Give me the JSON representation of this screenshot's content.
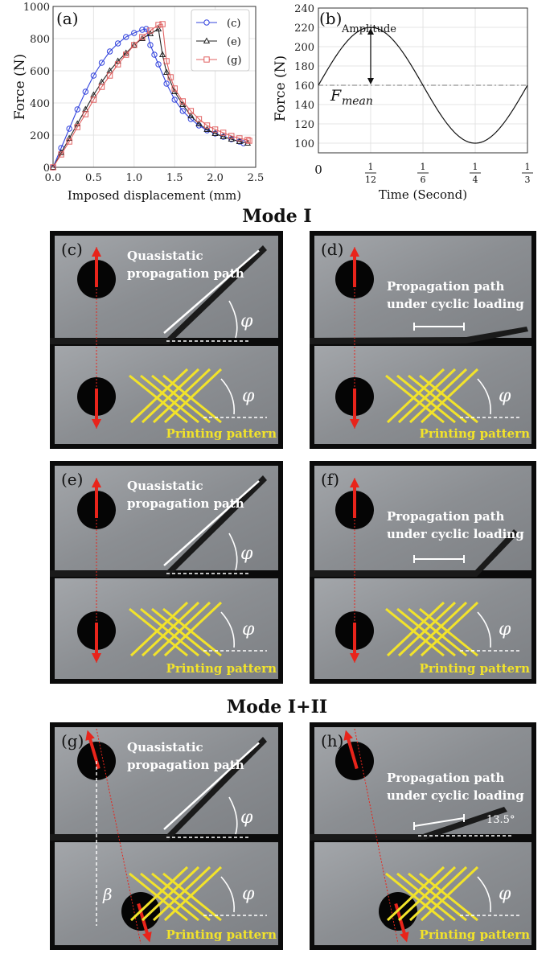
{
  "chart_data": [
    {
      "type": "line",
      "panel_label": "(a)",
      "xlabel": "Imposed displacement (mm)",
      "ylabel": "Force (N)",
      "xlim": [
        0,
        2.5
      ],
      "ylim": [
        0,
        1000
      ],
      "xticks": [
        "0.0",
        "0.5",
        "1.0",
        "1.5",
        "2.0",
        "2.5"
      ],
      "yticks": [
        "0",
        "200",
        "400",
        "600",
        "800",
        "1000"
      ],
      "legend_position": "top-right",
      "grid": true,
      "series": [
        {
          "name": "(c)",
          "color": "#3344dd",
          "marker": "circle",
          "x": [
            0,
            0.1,
            0.2,
            0.3,
            0.4,
            0.5,
            0.6,
            0.7,
            0.8,
            0.9,
            1.0,
            1.1,
            1.15,
            1.2,
            1.25,
            1.3,
            1.4,
            1.5,
            1.6,
            1.7,
            1.8,
            1.9,
            2.0,
            2.1,
            2.2,
            2.3,
            2.35
          ],
          "y": [
            0,
            120,
            240,
            360,
            470,
            570,
            650,
            720,
            770,
            810,
            835,
            855,
            860,
            760,
            700,
            640,
            520,
            420,
            350,
            300,
            260,
            230,
            210,
            190,
            175,
            160,
            150
          ]
        },
        {
          "name": "(e)",
          "color": "#222222",
          "marker": "triangle",
          "x": [
            0,
            0.1,
            0.2,
            0.3,
            0.4,
            0.5,
            0.6,
            0.7,
            0.8,
            0.9,
            1.0,
            1.1,
            1.2,
            1.3,
            1.35,
            1.4,
            1.5,
            1.6,
            1.7,
            1.8,
            1.9,
            2.0,
            2.1,
            2.2,
            2.3,
            2.4
          ],
          "y": [
            0,
            90,
            180,
            270,
            360,
            450,
            530,
            600,
            660,
            710,
            760,
            800,
            830,
            860,
            700,
            590,
            470,
            390,
            320,
            270,
            235,
            210,
            190,
            175,
            160,
            150
          ]
        },
        {
          "name": "(g)",
          "color": "#e06060",
          "marker": "square",
          "x": [
            0,
            0.1,
            0.2,
            0.3,
            0.4,
            0.5,
            0.6,
            0.7,
            0.8,
            0.9,
            1.0,
            1.1,
            1.2,
            1.3,
            1.35,
            1.4,
            1.45,
            1.5,
            1.6,
            1.7,
            1.8,
            1.9,
            2.0,
            2.1,
            2.2,
            2.3,
            2.4,
            2.42
          ],
          "y": [
            0,
            80,
            160,
            250,
            330,
            420,
            500,
            570,
            640,
            700,
            760,
            810,
            850,
            885,
            890,
            660,
            560,
            490,
            410,
            350,
            300,
            260,
            235,
            215,
            195,
            180,
            170,
            165
          ]
        }
      ]
    },
    {
      "type": "line",
      "panel_label": "(b)",
      "xlabel": "Time (Second)",
      "ylabel": "Force (N)",
      "xlim": [
        0,
        0.3333
      ],
      "ylim": [
        90,
        240
      ],
      "yticks": [
        "100",
        "120",
        "140",
        "160",
        "180",
        "200",
        "220",
        "240"
      ],
      "xticks": [
        {
          "value": 0,
          "label": "0",
          "num": "",
          "den": ""
        },
        {
          "value": 0.0833,
          "label": "",
          "num": "1",
          "den": "12"
        },
        {
          "value": 0.1667,
          "label": "",
          "num": "1",
          "den": "6"
        },
        {
          "value": 0.25,
          "label": "",
          "num": "1",
          "den": "4"
        },
        {
          "value": 0.3333,
          "label": "",
          "num": "1",
          "den": "3"
        }
      ],
      "grid": true,
      "mean": 160,
      "amplitude": 60,
      "period": 0.3333,
      "annotations": {
        "amplitude": "Amplitude",
        "mean_symbol": "F",
        "mean_subscript": "mean"
      }
    }
  ],
  "section_titles": {
    "mode1": "Mode I",
    "mode12": "Mode I+II"
  },
  "photo_panels": {
    "c": {
      "label": "(c)",
      "title_line1": "Quasistatic",
      "title_line2": "propagation path",
      "pattern": "Printing pattern",
      "phi": "φ"
    },
    "d": {
      "label": "(d)",
      "title_line1": "Propagation path",
      "title_line2": "under cyclic loading",
      "pattern": "Printing pattern",
      "phi": "φ"
    },
    "e": {
      "label": "(e)",
      "title_line1": "Quasistatic",
      "title_line2": "propagation path",
      "pattern": "Printing pattern",
      "phi": "φ"
    },
    "f": {
      "label": "(f)",
      "title_line1": "Propagation path",
      "title_line2": "under cyclic loading",
      "pattern": "Printing pattern",
      "phi": "φ"
    },
    "g": {
      "label": "(g)",
      "title_line1": "Quasistatic",
      "title_line2": "propagation path",
      "pattern": "Printing pattern",
      "phi": "φ",
      "beta": "β"
    },
    "h": {
      "label": "(h)",
      "title_line1": "Propagation path",
      "title_line2": "under cyclic loading",
      "pattern": "Printing pattern",
      "phi": "φ",
      "angle": "13.5°"
    }
  },
  "colors": {
    "arrow": "#e8241b",
    "pattern": "#f2e32a",
    "specimen": "#8f9296",
    "background": "#0b0b0b"
  }
}
